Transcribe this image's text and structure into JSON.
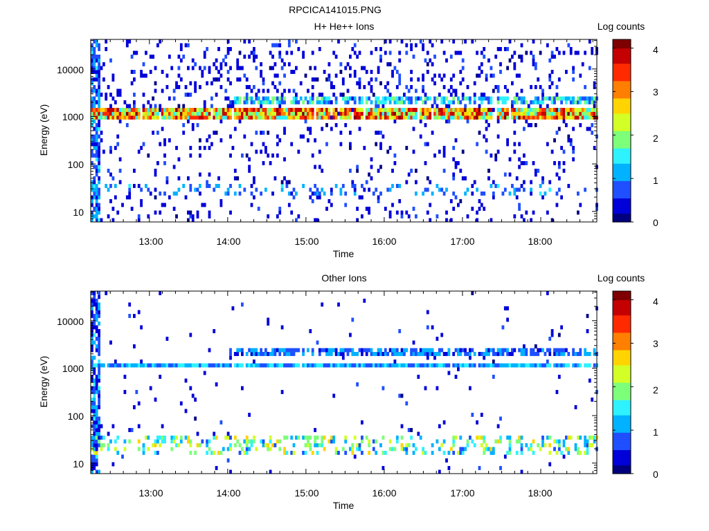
{
  "figure_title": "RPCICA141015.PNG",
  "colors": {
    "colormap": [
      "#00007f",
      "#0000d9",
      "#1f4fff",
      "#00b2ff",
      "#2ef2ff",
      "#7dff7a",
      "#d3ff26",
      "#ffd400",
      "#ff7f00",
      "#ff2a00",
      "#c40000",
      "#7f0000"
    ],
    "axis": "#000000",
    "background": "#ffffff"
  },
  "chart_data": [
    {
      "type": "heatmap",
      "title": "H+ He++ Ions",
      "xlabel": "Time",
      "ylabel": "Energy (eV)",
      "y_scale": "log",
      "xlim": [
        "12:15",
        "18:43"
      ],
      "ylim": [
        6,
        42000
      ],
      "x_tick_labels": [
        "13:00",
        "14:00",
        "15:00",
        "16:00",
        "17:00",
        "18:00"
      ],
      "y_tick_labels": [
        "10",
        "100",
        "1000",
        "10000"
      ],
      "colorbar": {
        "label": "Log counts",
        "range": [
          0,
          4.2
        ],
        "ticks": [
          "0",
          "1",
          "2",
          "3",
          "4"
        ]
      },
      "features": [
        {
          "name": "main band",
          "energy_eV": [
            900,
            1400
          ],
          "peak_log_counts": 4.1
        },
        {
          "name": "secondary band",
          "energy_eV": [
            2000,
            2700
          ],
          "peak_log_counts": 2.0
        },
        {
          "name": "low-energy patches",
          "energy_eV": [
            20,
            40
          ],
          "peak_log_counts": 1.4
        }
      ]
    },
    {
      "type": "heatmap",
      "title": "Other Ions",
      "xlabel": "Time",
      "ylabel": "Energy (eV)",
      "y_scale": "log",
      "xlim": [
        "12:15",
        "18:43"
      ],
      "ylim": [
        6,
        42000
      ],
      "x_tick_labels": [
        "13:00",
        "14:00",
        "15:00",
        "16:00",
        "17:00",
        "18:00"
      ],
      "y_tick_labels": [
        "10",
        "100",
        "1000",
        "10000"
      ],
      "colorbar": {
        "label": "Log counts",
        "range": [
          0,
          4.2
        ],
        "ticks": [
          "0",
          "1",
          "2",
          "3",
          "4"
        ]
      },
      "features": [
        {
          "name": "main band",
          "energy_eV": [
            1000,
            1300
          ],
          "peak_log_counts": 1.7
        },
        {
          "name": "secondary band",
          "energy_eV": [
            2000,
            2700
          ],
          "peak_log_counts": 1.3
        },
        {
          "name": "low-energy patches",
          "energy_eV": [
            15,
            35
          ],
          "peak_log_counts": 2.7
        }
      ]
    }
  ]
}
